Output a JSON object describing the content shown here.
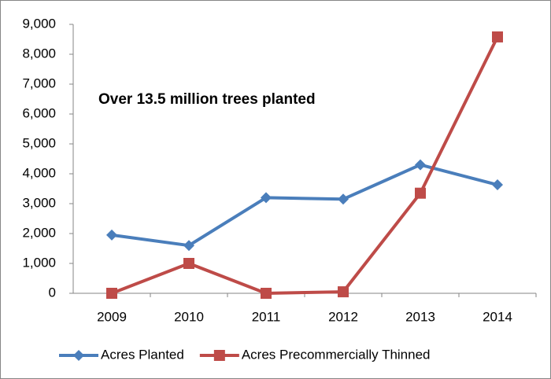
{
  "chart_data": {
    "type": "line",
    "annotation": "Over 13.5 million trees planted",
    "categories": [
      "2009",
      "2010",
      "2011",
      "2012",
      "2013",
      "2014"
    ],
    "series": [
      {
        "name": "Acres Planted",
        "color": "#4a7ebb",
        "marker": "diamond",
        "values": [
          1950,
          1600,
          3200,
          3150,
          4300,
          3630
        ]
      },
      {
        "name": "Acres Precommercially Thinned",
        "color": "#be4b48",
        "marker": "square",
        "values": [
          0,
          1000,
          0,
          50,
          3350,
          8580
        ]
      }
    ],
    "ylim": [
      0,
      9000
    ],
    "yticks": [
      0,
      {
        "value": 1000,
        "label": "1,000"
      },
      {
        "value": 2000,
        "label": "2,000"
      },
      {
        "value": 3000,
        "label": "3,000"
      },
      {
        "value": 4000,
        "label": "4,000"
      },
      {
        "value": 5000,
        "label": "5,000"
      },
      {
        "value": 6000,
        "label": "6,000"
      },
      {
        "value": 7000,
        "label": "7,000"
      },
      {
        "value": 8000,
        "label": "8,000"
      },
      {
        "value": 9000,
        "label": "9,000"
      }
    ],
    "grid": false,
    "legend": "bottom"
  }
}
